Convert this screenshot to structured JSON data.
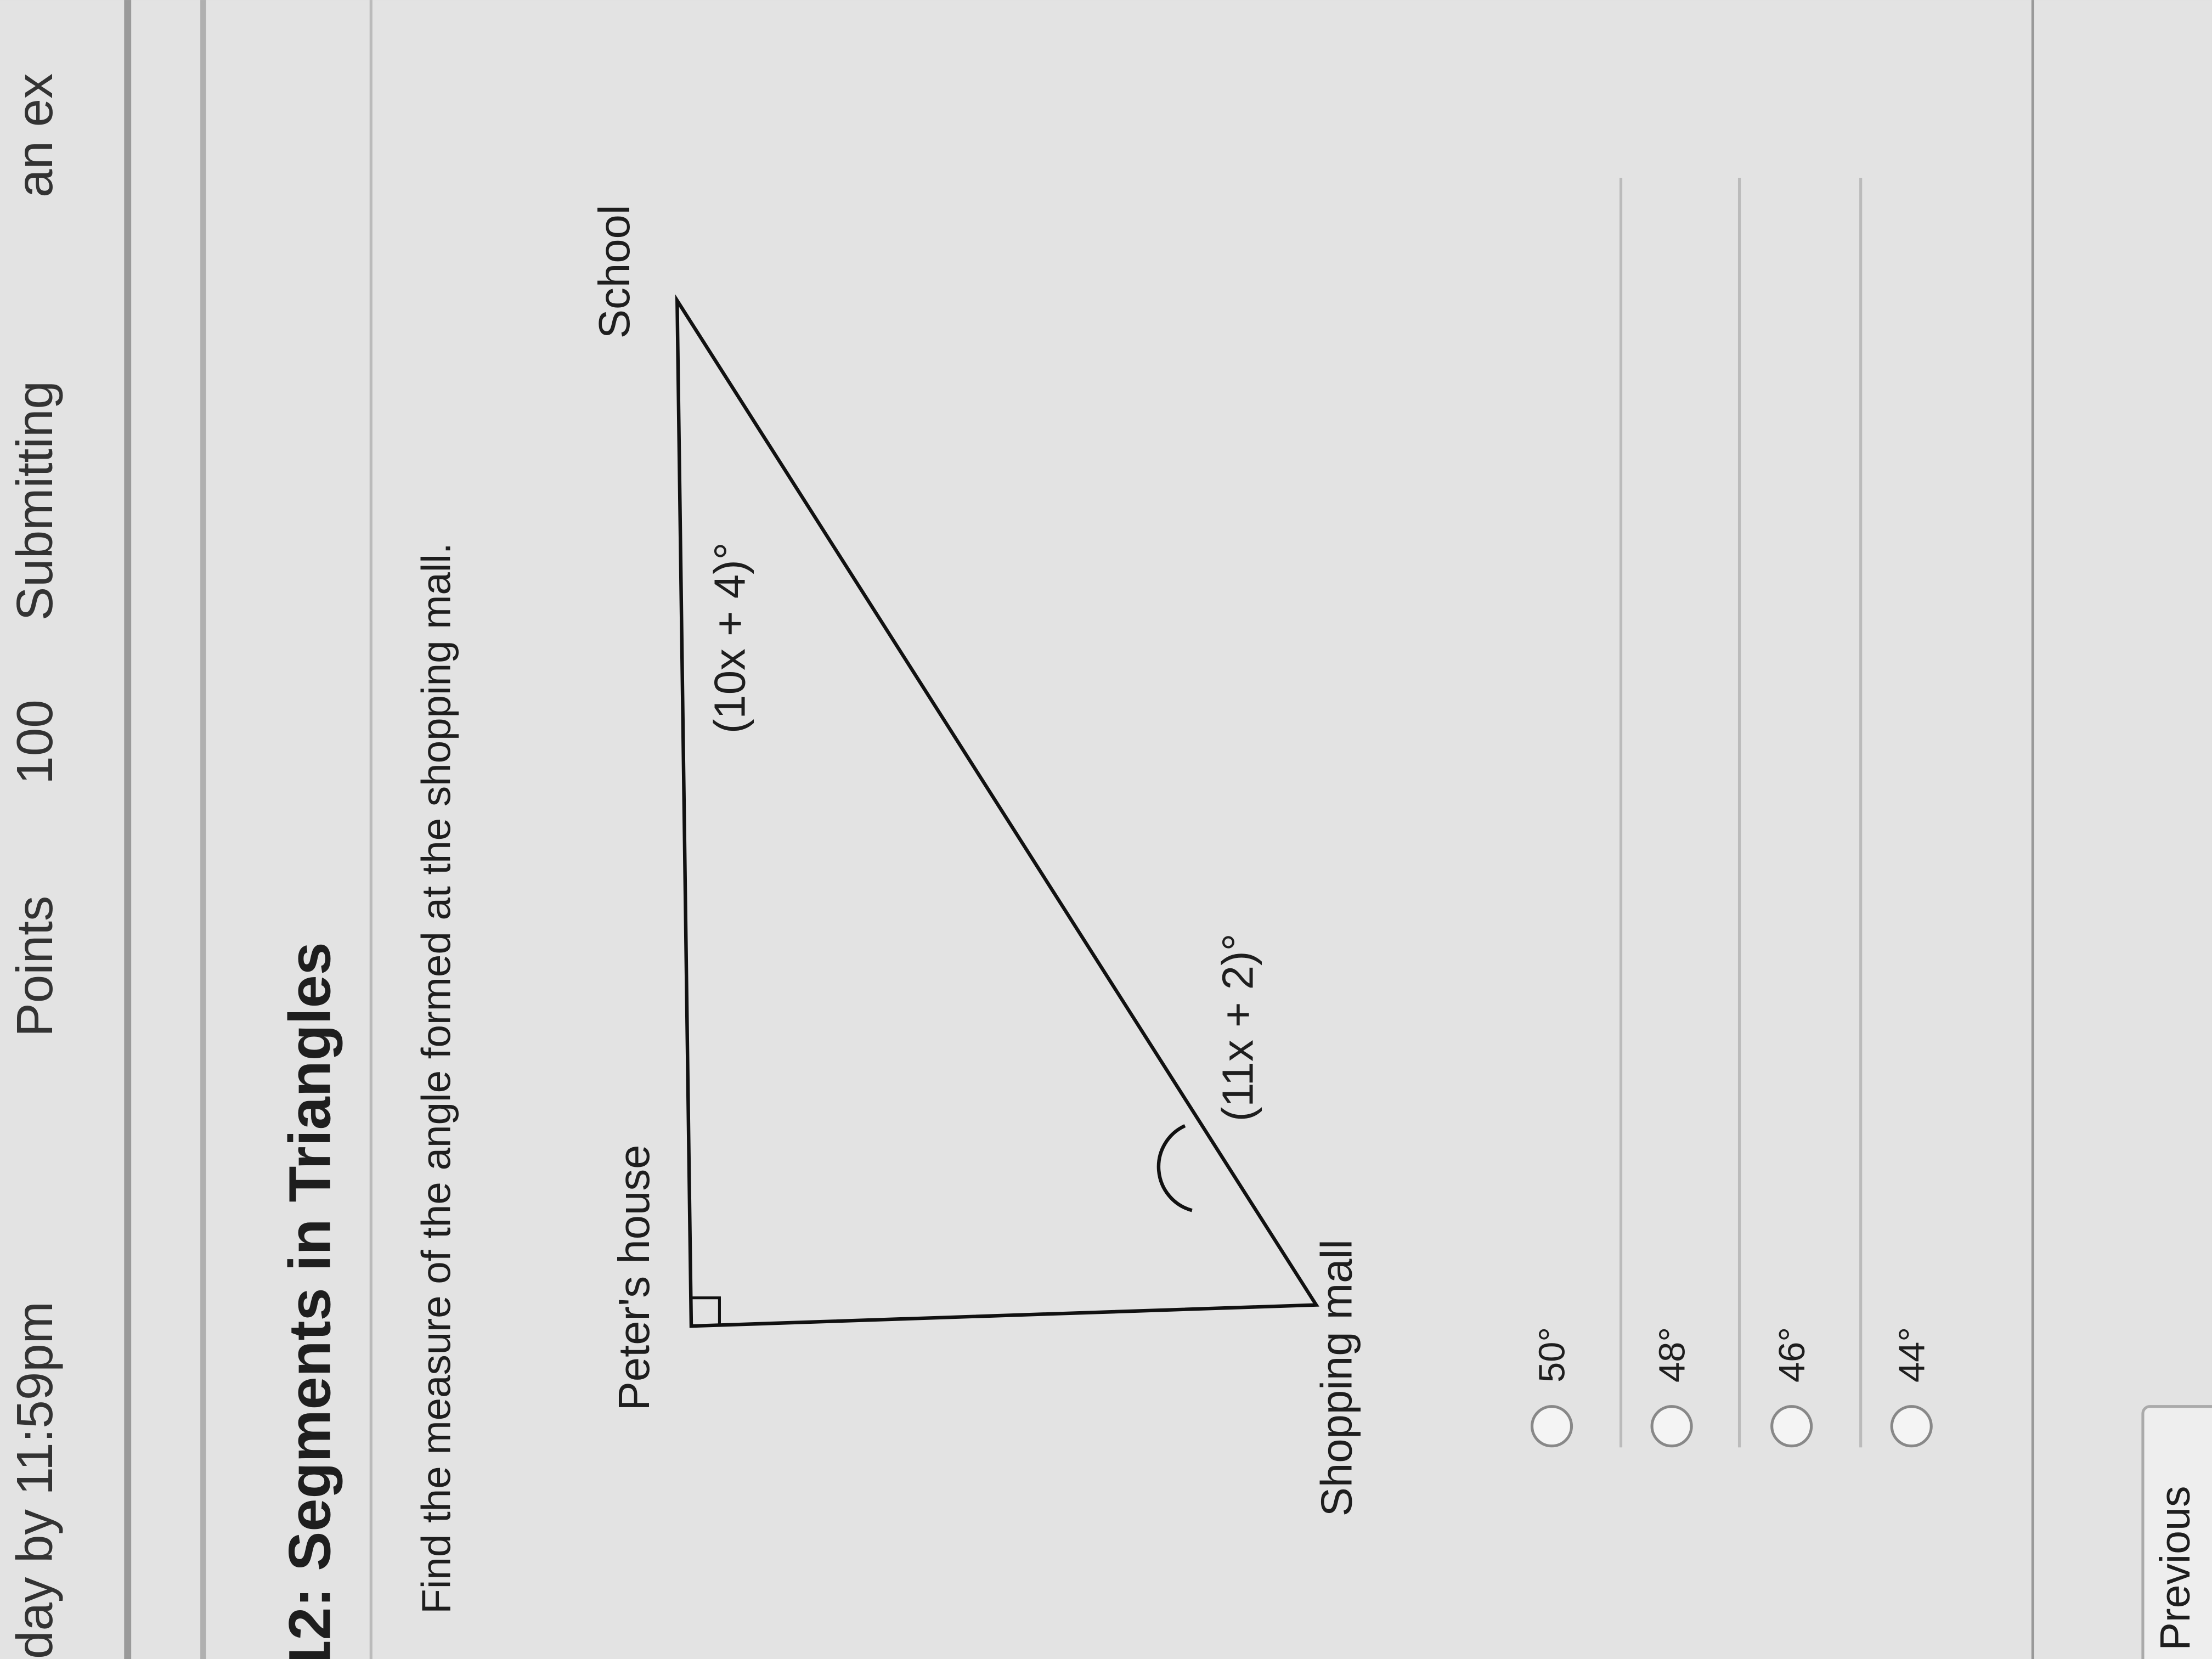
{
  "header": {
    "due": "day by 11:59pm",
    "points_label": "Points",
    "points_value": "100",
    "submitting_label": "Submitting",
    "submitting_value": "an ex"
  },
  "question": {
    "title": "12: Segments in Triangles",
    "prompt": "Find the measure of the angle formed at the shopping mall.",
    "diagram": {
      "peter_label": "Peter's house",
      "school_label": "School",
      "mall_label": "Shopping mall",
      "school_angle": "(10x + 4)°",
      "mall_angle": "(11x + 2)°"
    },
    "options": [
      {
        "label": "50°",
        "selected": false
      },
      {
        "label": "48°",
        "selected": false
      },
      {
        "label": "46°",
        "selected": false
      },
      {
        "label": "44°",
        "selected": false
      }
    ]
  },
  "nav": {
    "previous_label": "Previous"
  }
}
